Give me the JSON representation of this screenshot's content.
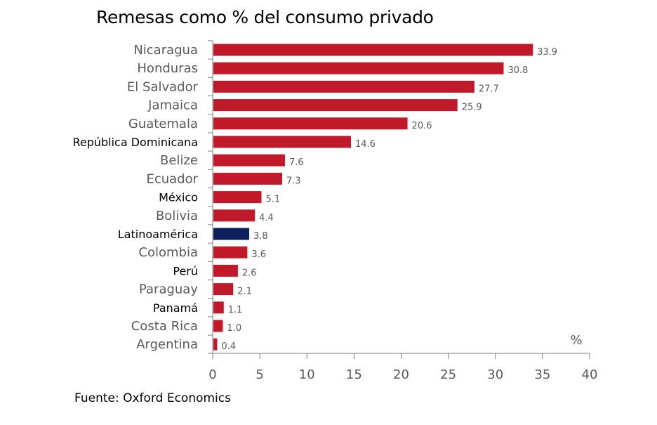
{
  "chart_data": {
    "type": "bar",
    "orientation": "horizontal",
    "title": "Remesas como % del consumo privado",
    "xlabel": "%",
    "source": "Fuente: Oxford Economics",
    "categories": [
      "Nicaragua",
      "Honduras",
      "El Salvador",
      "Jamaica",
      "Guatemala",
      "República Dominicana",
      "Belize",
      "Ecuador",
      "México",
      "Bolivia",
      "Latinoamérica",
      "Colombia",
      "Perú",
      "Paraguay",
      "Panamá",
      "Costa Rica",
      "Argentina"
    ],
    "values": [
      33.9,
      30.8,
      27.7,
      25.9,
      20.6,
      14.6,
      7.6,
      7.3,
      5.1,
      4.4,
      3.8,
      3.6,
      2.6,
      2.1,
      1.1,
      1.0,
      0.4
    ],
    "value_labels": [
      "33.9",
      "30.8",
      "27.7",
      "25.9",
      "20.6",
      "14.6",
      "7.6",
      "7.3",
      "5.1",
      "4.4",
      "3.8",
      "3.6",
      "2.6",
      "2.1",
      "1.1",
      "1.0",
      "0.4"
    ],
    "highlighted_labels": [
      "República Dominicana",
      "México",
      "Latinoamérica",
      "Perú",
      "Panamá"
    ],
    "highlight_bar": "Latinoamérica",
    "xlim": [
      0,
      40
    ],
    "xticks": [
      "0",
      "5",
      "10",
      "15",
      "20",
      "25",
      "30",
      "35",
      "40"
    ],
    "grid": false,
    "colors": {
      "bar": "#c0192a",
      "highlight": "#0c1f5c",
      "axis": "#7f7f7f"
    }
  }
}
